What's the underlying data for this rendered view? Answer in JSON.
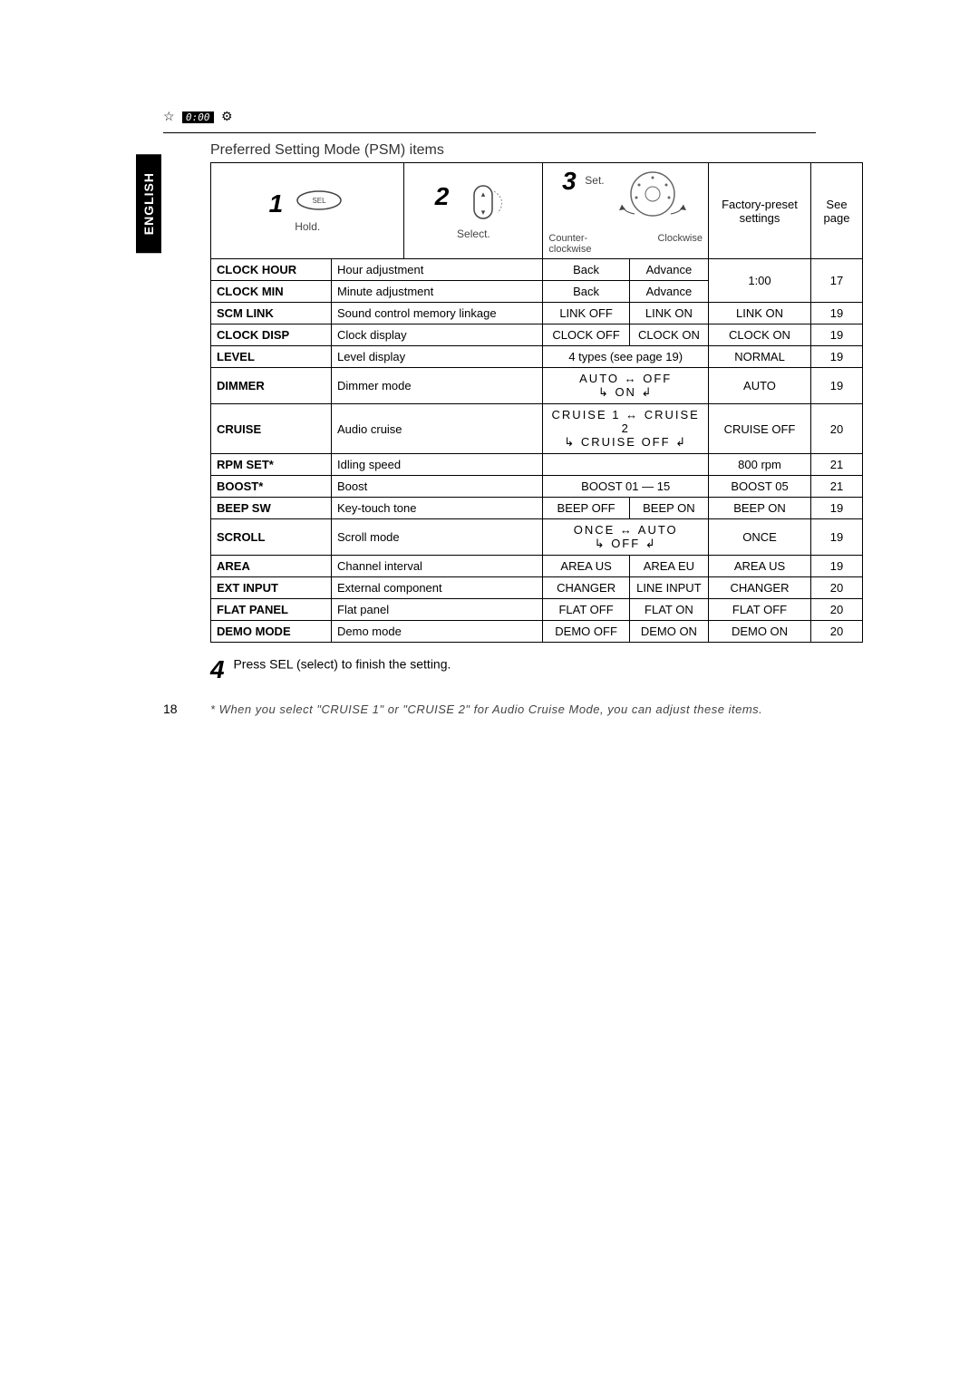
{
  "header": {
    "star_icon": "☆",
    "clock_display": "0:00",
    "gear_icon": "⚙"
  },
  "language_tab": "ENGLISH",
  "title": "Preferred Setting Mode (PSM) items",
  "steps": {
    "s1": {
      "num": "1",
      "label": "Hold."
    },
    "s2": {
      "num": "2",
      "label": "Select."
    },
    "s3": {
      "num": "3",
      "label": "Set.",
      "ccw": "Counter-\nclockwise",
      "cw": "Clockwise"
    },
    "col_factory": "Factory-preset\nsettings",
    "col_see": "See\npage"
  },
  "rows": [
    {
      "key": "CLOCK HOUR",
      "desc": "Hour adjustment",
      "ccw": "Back",
      "cw": "Advance",
      "factory": "1:00",
      "page": "17",
      "factory_rowspan": 2,
      "page_rowspan": 2
    },
    {
      "key": "CLOCK MIN",
      "desc": "Minute adjustment",
      "ccw": "Back",
      "cw": "Advance"
    },
    {
      "key": "SCM LINK",
      "desc": "Sound control memory linkage",
      "ccw": "LINK OFF",
      "cw": "LINK ON",
      "factory": "LINK ON",
      "page": "19"
    },
    {
      "key": "CLOCK DISP",
      "desc": "Clock display",
      "ccw": "CLOCK OFF",
      "cw": "CLOCK ON",
      "factory": "CLOCK ON",
      "page": "19"
    },
    {
      "key": "LEVEL",
      "desc": "Level display",
      "span_text": "4 types (see page 19)",
      "factory": "NORMAL",
      "page": "19"
    },
    {
      "key": "DIMMER",
      "desc": "Dimmer mode",
      "cycle": "AUTO  ↔  OFF\n↳        ON       ↲",
      "factory": "AUTO",
      "page": "19"
    },
    {
      "key": "CRUISE",
      "desc": "Audio cruise",
      "cycle": "CRUISE 1 ↔ CRUISE 2\n↳  CRUISE OFF  ↲",
      "factory": "CRUISE OFF",
      "page": "20"
    },
    {
      "key": "RPM SET*",
      "desc": "Idling speed",
      "span_text": "",
      "factory": "800 rpm",
      "page": "21"
    },
    {
      "key": "BOOST*",
      "desc": "Boost",
      "span_text": "BOOST 01 — 15",
      "factory": "BOOST 05",
      "page": "21"
    },
    {
      "key": "BEEP SW",
      "desc": "Key-touch tone",
      "ccw": "BEEP OFF",
      "cw": "BEEP ON",
      "factory": "BEEP ON",
      "page": "19"
    },
    {
      "key": "SCROLL",
      "desc": "Scroll mode",
      "cycle": "ONCE   ↔   AUTO\n↳      OFF      ↲",
      "factory": "ONCE",
      "page": "19"
    },
    {
      "key": "AREA",
      "desc": "Channel interval",
      "ccw": "AREA US",
      "cw": "AREA EU",
      "factory": "AREA US",
      "page": "19"
    },
    {
      "key": "EXT INPUT",
      "desc": "External component",
      "ccw": "CHANGER",
      "cw": "LINE INPUT",
      "factory": "CHANGER",
      "page": "20"
    },
    {
      "key": "FLAT PANEL",
      "desc": "Flat panel",
      "ccw": "FLAT OFF",
      "cw": "FLAT ON",
      "factory": "FLAT OFF",
      "page": "20"
    },
    {
      "key": "DEMO MODE",
      "desc": "Demo mode",
      "ccw": "DEMO OFF",
      "cw": "DEMO ON",
      "factory": "DEMO ON",
      "page": "20"
    }
  ],
  "step4": {
    "num": "4",
    "text": "Press SEL (select) to finish the setting."
  },
  "footnote": "* When you select \"CRUISE 1\" or \"CRUISE 2\" for Audio Cruise Mode, you can adjust these items.",
  "page_number": "18"
}
